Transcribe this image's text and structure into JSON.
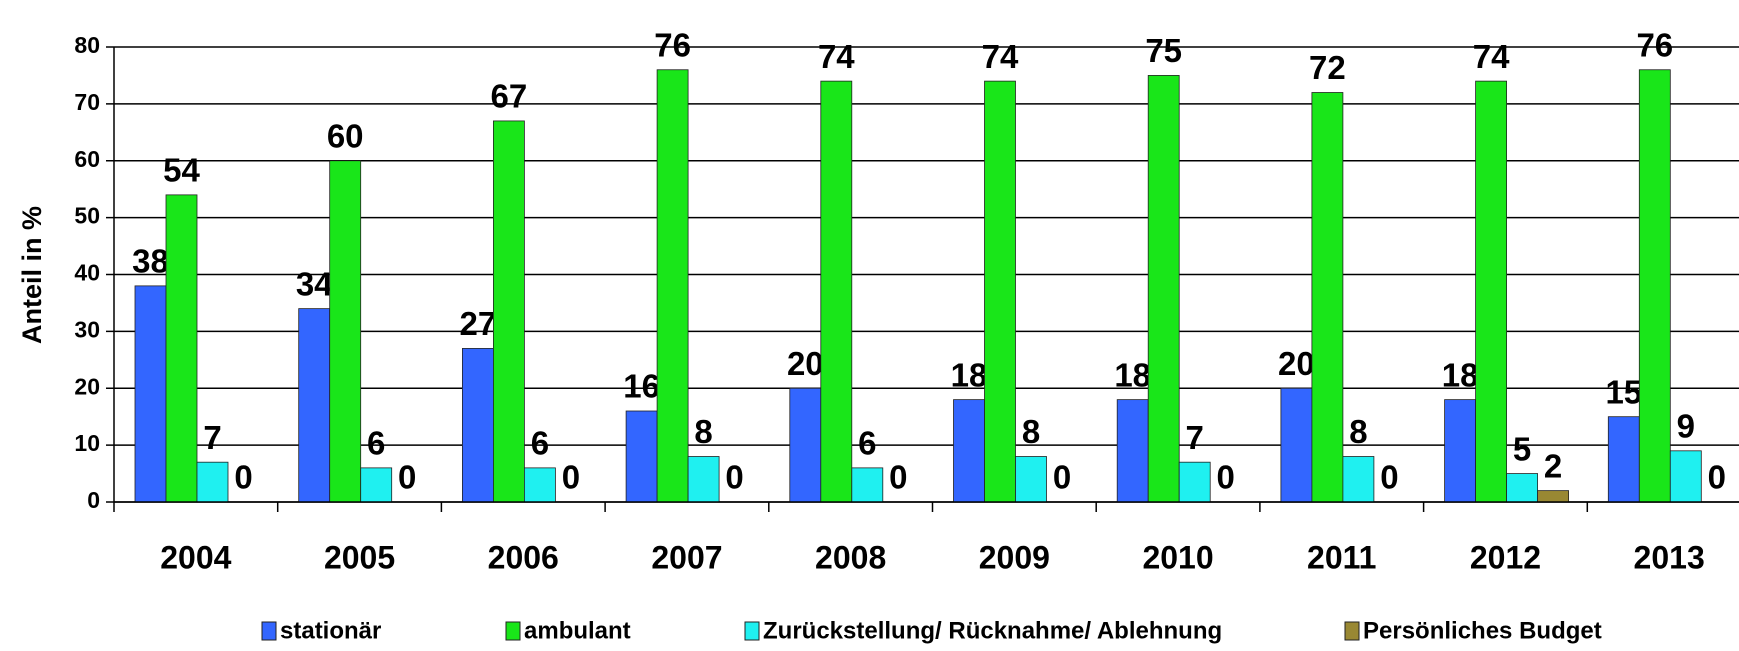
{
  "chart_data": {
    "type": "bar",
    "y_label": "Anteil in %",
    "categories": [
      "2004",
      "2005",
      "2006",
      "2007",
      "2008",
      "2009",
      "2010",
      "2011",
      "2012",
      "2013"
    ],
    "series": [
      {
        "name": "stationär",
        "color": "#3366ff",
        "values": [
          38,
          34,
          27,
          16,
          20,
          18,
          18,
          20,
          18,
          15
        ]
      },
      {
        "name": "ambulant",
        "color": "#19e619",
        "values": [
          54,
          60,
          67,
          76,
          74,
          74,
          75,
          72,
          74,
          76
        ]
      },
      {
        "name": "Zurückstellung/ Rücknahme/ Ablehnung",
        "color": "#1ff0f0",
        "values": [
          7,
          6,
          6,
          8,
          6,
          8,
          7,
          8,
          5,
          9
        ]
      },
      {
        "name": "Persönliches Budget",
        "color": "#998833",
        "values": [
          0,
          0,
          0,
          0,
          0,
          0,
          0,
          0,
          2,
          0
        ]
      }
    ],
    "ylim": [
      0,
      80
    ],
    "yticks": [
      0,
      10,
      20,
      30,
      40,
      50,
      60,
      70,
      80
    ],
    "grid": true,
    "legend": "bottom"
  }
}
